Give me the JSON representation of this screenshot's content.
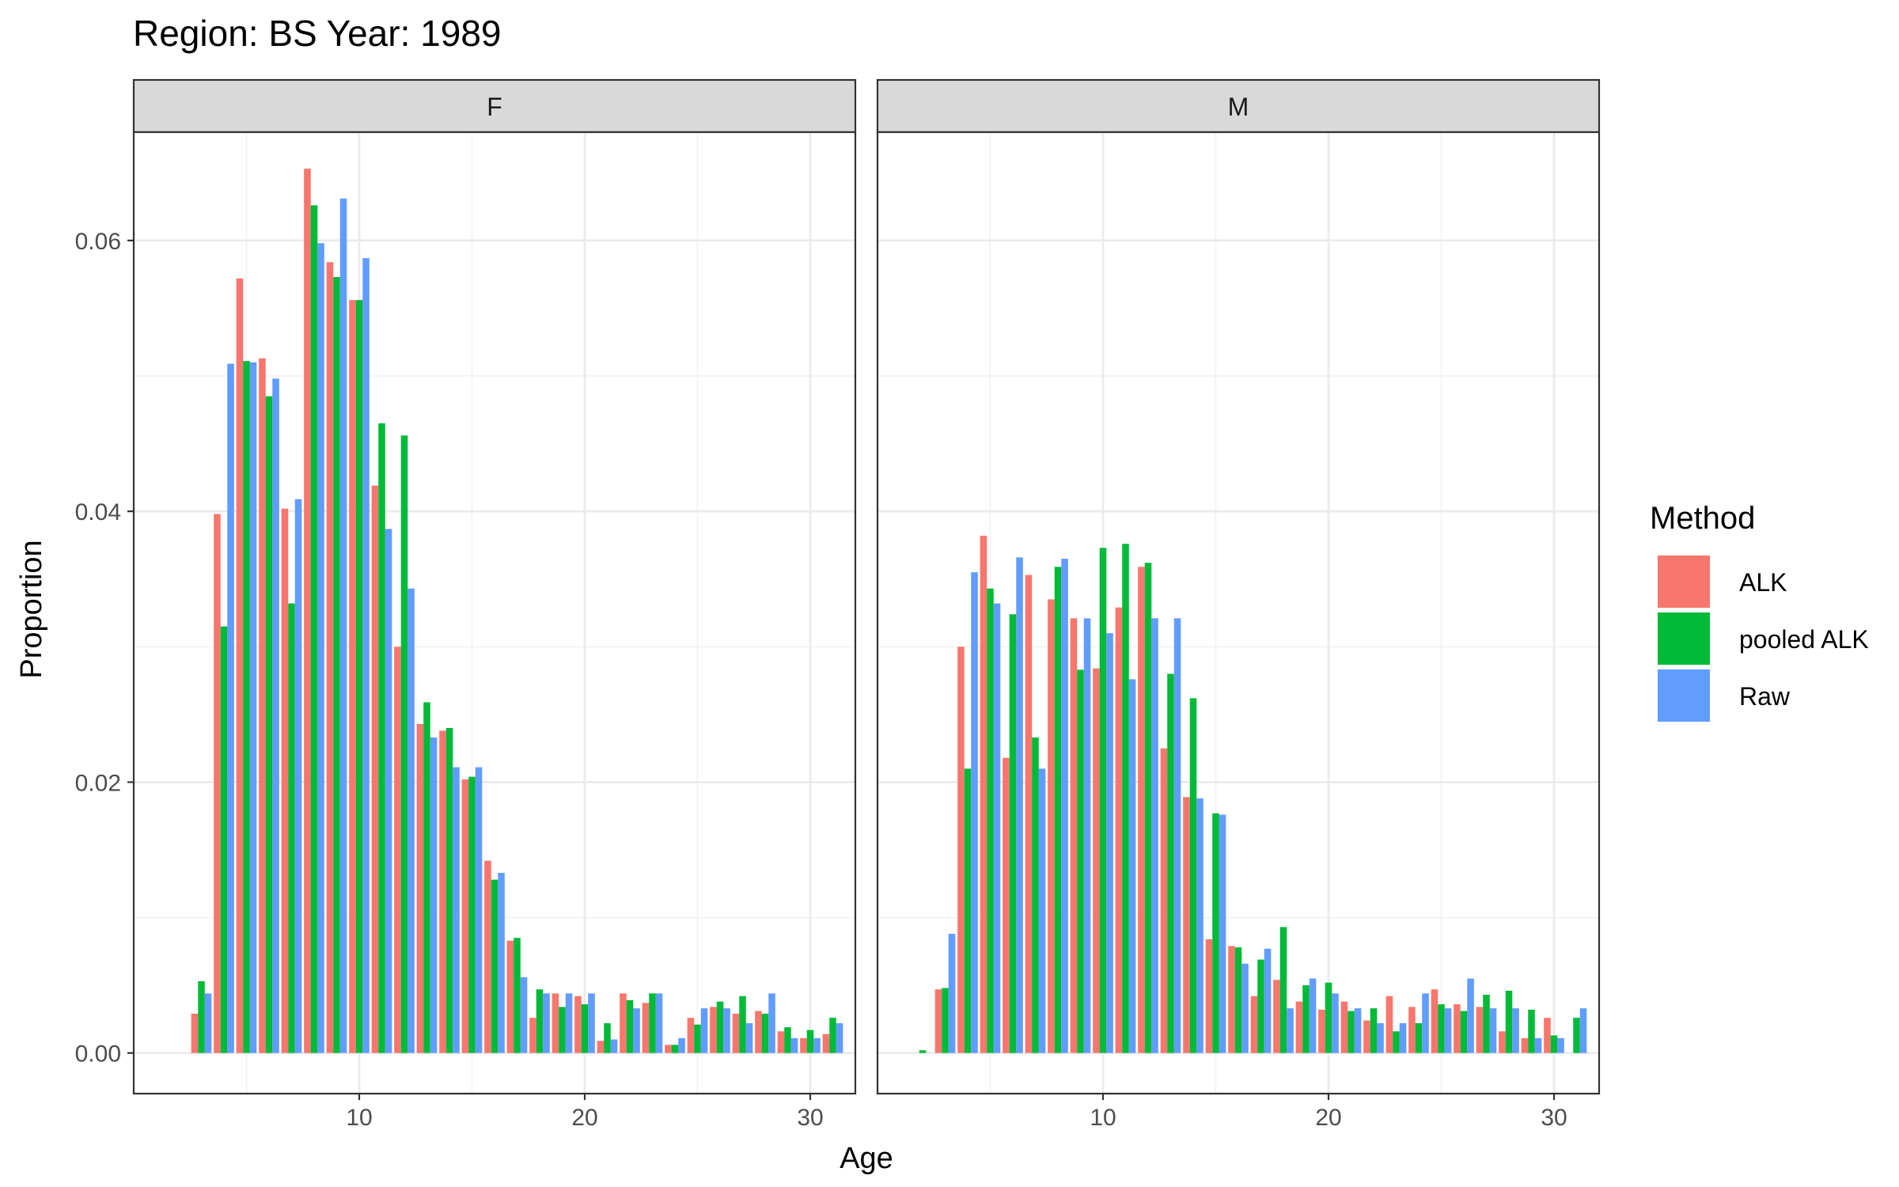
{
  "chart_data": {
    "type": "bar",
    "title": "Region: BS Year: 1989",
    "xlabel": "Age",
    "ylabel": "Proportion",
    "xlim": [
      0,
      32
    ],
    "ylim": [
      -0.003,
      0.068
    ],
    "x_ticks": [
      10,
      20,
      30
    ],
    "x_tick_labels": [
      "10",
      "20",
      "30"
    ],
    "y_ticks": [
      0.0,
      0.02,
      0.04,
      0.06
    ],
    "y_tick_labels": [
      "0.00",
      "0.02",
      "0.04",
      "0.06"
    ],
    "grid": true,
    "legend": {
      "title": "Method",
      "position": "right",
      "entries": [
        {
          "label": "ALK",
          "color": "#F8766D"
        },
        {
          "label": "pooled ALK",
          "color": "#00BA38"
        },
        {
          "label": "Raw",
          "color": "#619CFF"
        }
      ]
    },
    "facets": [
      {
        "label": "F",
        "ages": [
          3,
          4,
          5,
          6,
          7,
          8,
          9,
          10,
          11,
          12,
          13,
          14,
          15,
          16,
          17,
          18,
          19,
          20,
          21,
          22,
          23,
          24,
          25,
          26,
          27,
          28,
          29,
          30,
          31
        ],
        "series": [
          {
            "name": "ALK",
            "values": [
              0.0029,
              0.0398,
              0.0572,
              0.0513,
              0.0402,
              0.0653,
              0.0584,
              0.0556,
              0.0419,
              0.03,
              0.0243,
              0.0238,
              0.0202,
              0.0142,
              0.0083,
              0.0026,
              0.0044,
              0.0042,
              0.0009,
              0.0044,
              0.0037,
              0.0006,
              0.0026,
              0.0034,
              0.0029,
              0.0031,
              0.0016,
              0.0011,
              0.0014
            ]
          },
          {
            "name": "pooled ALK",
            "values": [
              0.0053,
              0.0315,
              0.0511,
              0.0485,
              0.0332,
              0.0626,
              0.0573,
              0.0556,
              0.0465,
              0.0456,
              0.0259,
              0.024,
              0.0204,
              0.0128,
              0.0085,
              0.0047,
              0.0034,
              0.0036,
              0.0022,
              0.0039,
              0.0044,
              0.0006,
              0.0021,
              0.0038,
              0.0042,
              0.0029,
              0.0019,
              0.0017,
              0.0026
            ]
          },
          {
            "name": "Raw",
            "values": [
              0.0044,
              0.0509,
              0.051,
              0.0498,
              0.0409,
              0.0598,
              0.0631,
              0.0587,
              0.0387,
              0.0343,
              0.0233,
              0.0211,
              0.0211,
              0.0133,
              0.0056,
              0.0044,
              0.0044,
              0.0044,
              0.001,
              0.0033,
              0.0044,
              0.0011,
              0.0033,
              0.0033,
              0.0022,
              0.0044,
              0.0011,
              0.0011,
              0.0022
            ]
          }
        ]
      },
      {
        "label": "M",
        "ages": [
          2,
          3,
          4,
          5,
          6,
          7,
          8,
          9,
          10,
          11,
          12,
          13,
          14,
          15,
          16,
          17,
          18,
          19,
          20,
          21,
          22,
          23,
          24,
          25,
          26,
          27,
          28,
          29,
          30,
          31
        ],
        "series": [
          {
            "name": "ALK",
            "values": [
              0.0,
              0.0047,
              0.03,
              0.0382,
              0.0218,
              0.0353,
              0.0335,
              0.0321,
              0.0284,
              0.0329,
              0.0359,
              0.0225,
              0.0189,
              0.0084,
              0.0079,
              0.0042,
              0.0054,
              0.0038,
              0.0032,
              0.0038,
              0.0024,
              0.0042,
              0.0034,
              0.0047,
              0.0036,
              0.0034,
              0.0016,
              0.0011,
              0.0026,
              0.0
            ]
          },
          {
            "name": "pooled ALK",
            "values": [
              0.0002,
              0.0048,
              0.021,
              0.0343,
              0.0324,
              0.0233,
              0.0359,
              0.0283,
              0.0373,
              0.0376,
              0.0362,
              0.028,
              0.0262,
              0.0177,
              0.0078,
              0.0069,
              0.0093,
              0.005,
              0.0052,
              0.0031,
              0.0033,
              0.0016,
              0.0022,
              0.0036,
              0.0031,
              0.0043,
              0.0046,
              0.0032,
              0.0013,
              0.0026
            ]
          },
          {
            "name": "Raw",
            "values": [
              0.0,
              0.0088,
              0.0355,
              0.0332,
              0.0366,
              0.021,
              0.0365,
              0.0321,
              0.031,
              0.0276,
              0.0321,
              0.0321,
              0.0188,
              0.0176,
              0.0066,
              0.0077,
              0.0033,
              0.0055,
              0.0044,
              0.0033,
              0.0022,
              0.0022,
              0.0044,
              0.0033,
              0.0055,
              0.0033,
              0.0033,
              0.0011,
              0.0011,
              0.0033
            ]
          }
        ]
      }
    ]
  }
}
